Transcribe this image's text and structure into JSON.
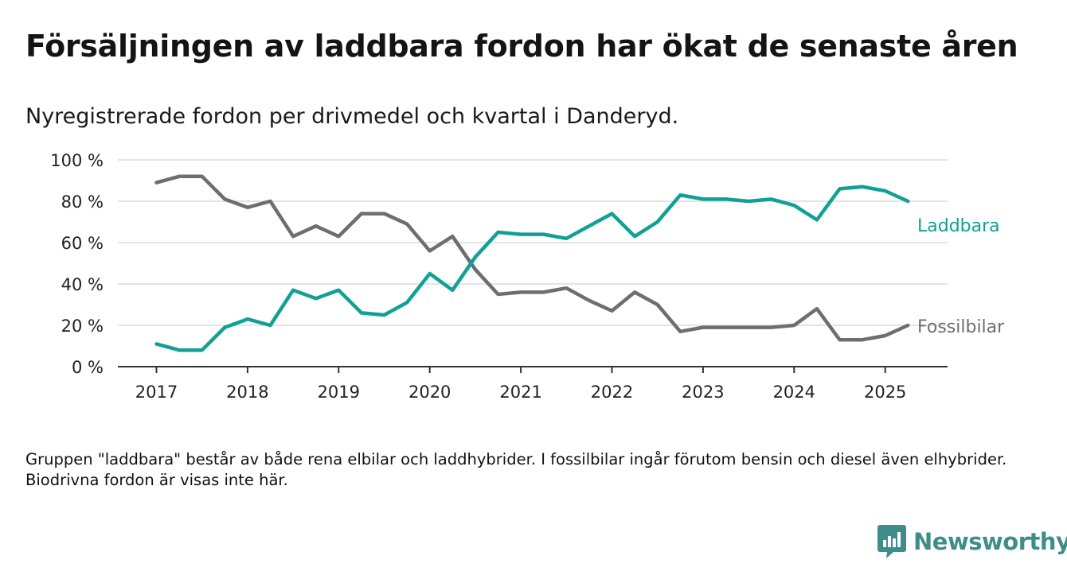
{
  "header": {
    "title": "Försäljningen av laddbara fordon har ökat de senaste åren",
    "subtitle": "Nyregistrerade fordon per drivmedel och kvartal i Danderyd."
  },
  "footnote": "Gruppen \"laddbara\" består av både rena elbilar och laddhybrider. I fossilbilar ingår förutom bensin och diesel även elhybrider. Biodrivna fordon är visas inte här.",
  "brand": {
    "name": "Newsworthy",
    "color": "#3f8d8b"
  },
  "chart_data": {
    "type": "line",
    "title": "",
    "xlabel": "",
    "ylabel": "",
    "ylim": [
      0,
      100
    ],
    "y_ticks": [
      0,
      20,
      40,
      60,
      80,
      100
    ],
    "y_tick_labels": [
      "0 %",
      "20 %",
      "40 %",
      "60 %",
      "80 %",
      "100 %"
    ],
    "x_tick_labels": [
      "2017",
      "2018",
      "2019",
      "2020",
      "2021",
      "2022",
      "2023",
      "2024",
      "2025"
    ],
    "x": [
      "2017Q1",
      "2017Q2",
      "2017Q3",
      "2017Q4",
      "2018Q1",
      "2018Q2",
      "2018Q3",
      "2018Q4",
      "2019Q1",
      "2019Q2",
      "2019Q3",
      "2019Q4",
      "2020Q1",
      "2020Q2",
      "2020Q3",
      "2020Q4",
      "2021Q1",
      "2021Q2",
      "2021Q3",
      "2021Q4",
      "2022Q1",
      "2022Q2",
      "2022Q3",
      "2022Q4",
      "2023Q1",
      "2023Q2",
      "2023Q3",
      "2023Q4",
      "2024Q1",
      "2024Q2",
      "2024Q3",
      "2024Q4",
      "2025Q1",
      "2025Q2"
    ],
    "grid": true,
    "legend": "direct labels at line ends",
    "series": [
      {
        "name": "Laddbara",
        "color": "#10a195",
        "values": [
          11,
          8,
          8,
          19,
          23,
          20,
          37,
          33,
          37,
          26,
          25,
          31,
          45,
          37,
          53,
          65,
          64,
          64,
          62,
          68,
          74,
          63,
          70,
          83,
          81,
          81,
          80,
          81,
          78,
          71,
          86,
          87,
          85,
          80
        ]
      },
      {
        "name": "Fossilbilar",
        "color": "#6e6d74",
        "values": [
          89,
          92,
          92,
          81,
          77,
          80,
          63,
          68,
          63,
          74,
          74,
          69,
          56,
          63,
          47,
          35,
          36,
          36,
          38,
          32,
          27,
          36,
          30,
          17,
          19,
          19,
          19,
          19,
          20,
          28,
          13,
          13,
          15,
          20
        ]
      }
    ]
  }
}
